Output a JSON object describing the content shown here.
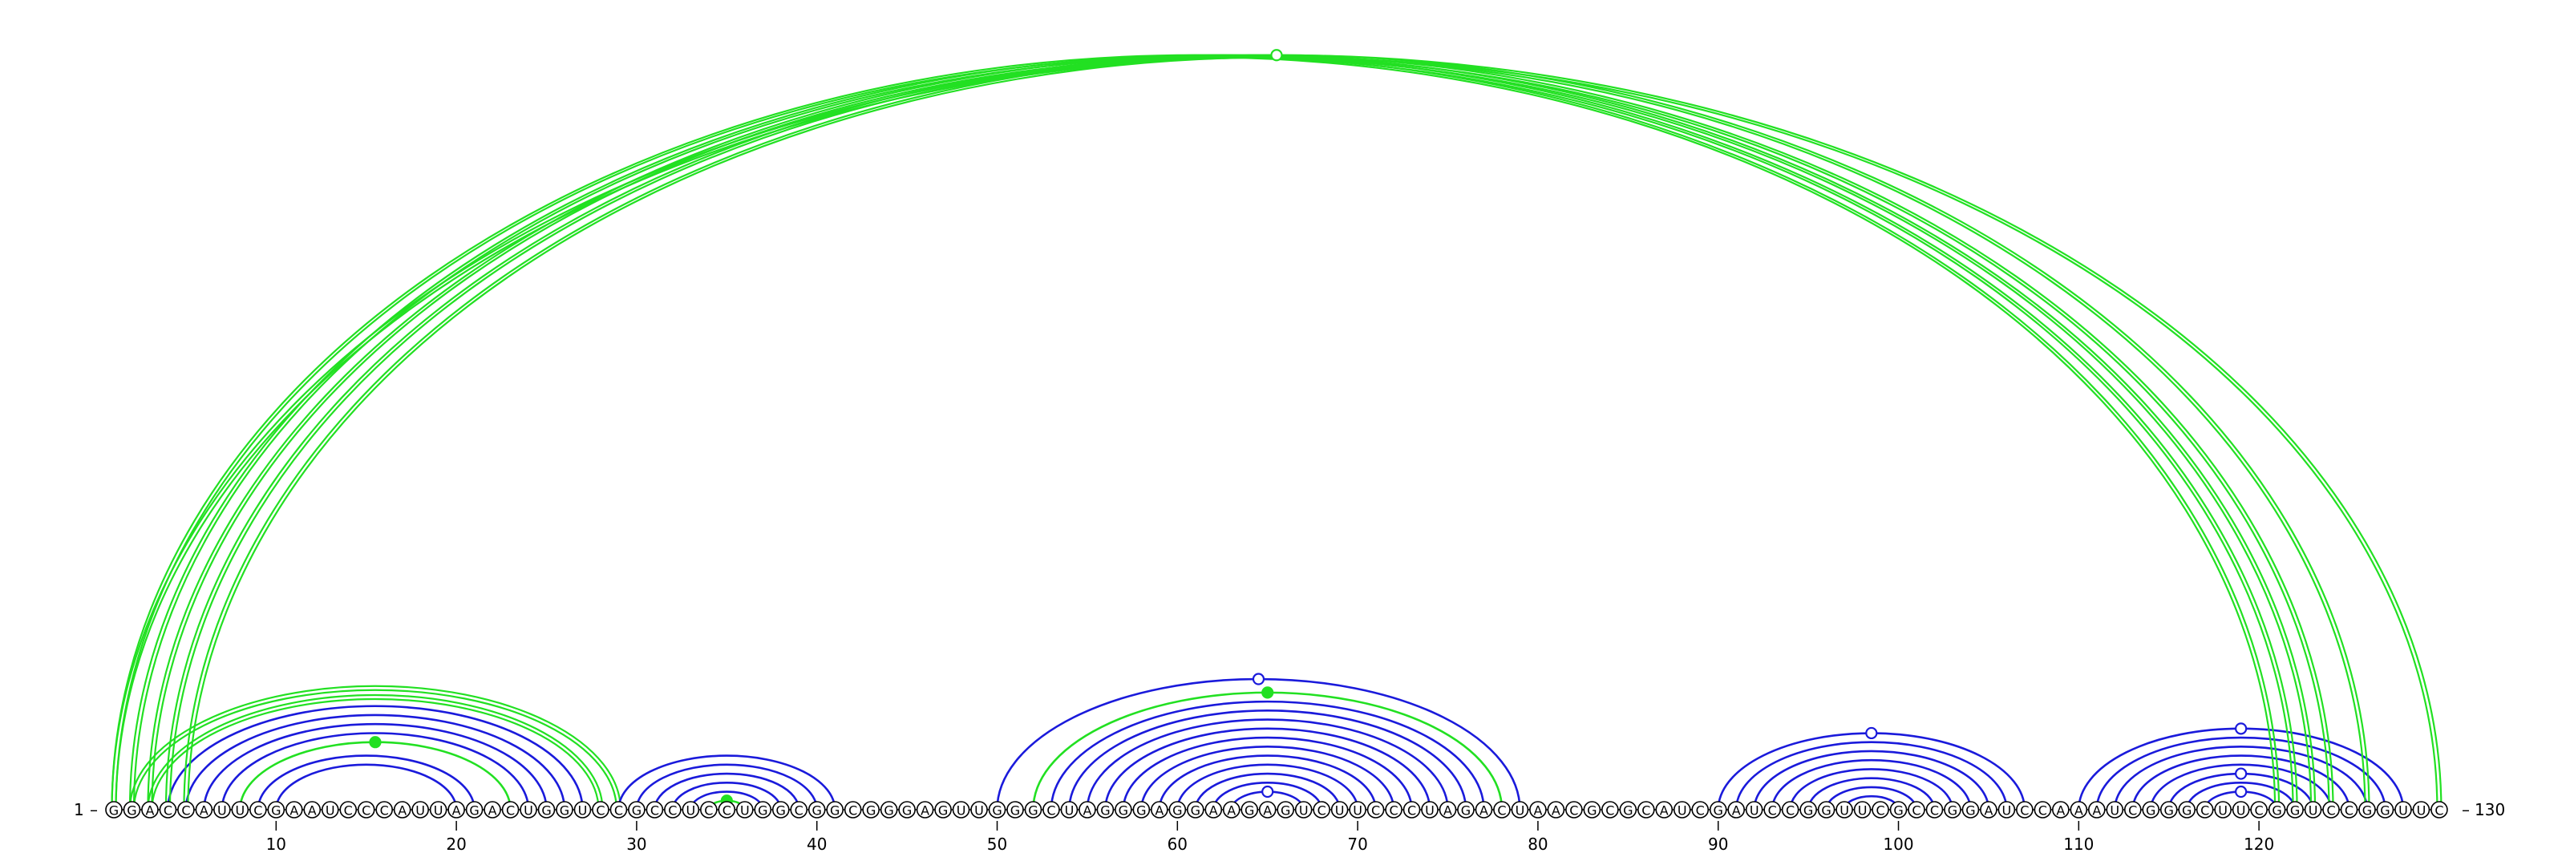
{
  "sequence": "GGACCAUUCGAAUCCCAUUAGACUGGUCCGCCUCCUGGCGGCGGGAGUUGGGCUAGGGAGGAAGAGUCUUCCCUAGACUAACGCGCAUCGAUCCGGUUCGCCGGAUCCAAAUCGGGCUUCGGUCCGGUUC",
  "start_label": "1",
  "end_label": "130",
  "tick_values": [
    "10",
    "20",
    "30",
    "40",
    "50",
    "60",
    "70",
    "80",
    "90",
    "100",
    "110",
    "120"
  ],
  "colors": {
    "blue": "#1a1adb",
    "green": "#22e022",
    "backbone": "#000000"
  },
  "helices": [
    {
      "color": "blue",
      "pairs": [
        [
          4,
          27
        ],
        [
          5,
          26
        ],
        [
          6,
          25
        ],
        [
          7,
          24
        ],
        [
          9,
          21
        ],
        [
          10,
          20
        ]
      ]
    },
    {
      "color": "green",
      "pairs": [
        [
          8,
          23
        ]
      ],
      "marker": "filled"
    },
    {
      "color": "green",
      "pairs": [
        [
          3,
          28
        ],
        [
          2,
          29
        ]
      ],
      "double": true
    },
    {
      "color": "blue",
      "pairs": [
        [
          29,
          41
        ],
        [
          30,
          40
        ],
        [
          31,
          39
        ],
        [
          32,
          38
        ],
        [
          33,
          37
        ]
      ]
    },
    {
      "color": "green",
      "pairs": [
        [
          34,
          36
        ]
      ],
      "marker": "filled"
    },
    {
      "color": "blue",
      "pairs": [
        [
          50,
          79
        ],
        [
          53,
          77
        ],
        [
          54,
          76
        ],
        [
          55,
          75
        ],
        [
          56,
          74
        ],
        [
          57,
          73
        ],
        [
          58,
          72
        ],
        [
          59,
          71
        ],
        [
          60,
          70
        ],
        [
          61,
          69
        ],
        [
          62,
          68
        ]
      ],
      "marker": "open"
    },
    {
      "color": "green",
      "pairs": [
        [
          52,
          78
        ]
      ],
      "marker": "filled"
    },
    {
      "color": "blue",
      "pairs": [
        [
          63,
          67
        ]
      ],
      "marker": "open"
    },
    {
      "color": "blue",
      "pairs": [
        [
          90,
          107
        ],
        [
          91,
          106
        ],
        [
          92,
          105
        ],
        [
          93,
          104
        ],
        [
          94,
          103
        ],
        [
          95,
          102
        ],
        [
          96,
          101
        ],
        [
          97,
          100
        ]
      ],
      "marker": "open"
    },
    {
      "color": "blue",
      "pairs": [
        [
          110,
          128
        ],
        [
          111,
          127
        ],
        [
          112,
          126
        ],
        [
          113,
          125
        ],
        [
          114,
          124
        ]
      ],
      "marker": "open"
    },
    {
      "color": "blue",
      "pairs": [
        [
          115,
          123
        ],
        [
          116,
          122
        ]
      ],
      "marker": "open"
    },
    {
      "color": "blue",
      "pairs": [
        [
          117,
          121
        ]
      ],
      "marker": "open"
    },
    {
      "color": "green",
      "pairs": [
        [
          1,
          121
        ],
        [
          2,
          122
        ],
        [
          3,
          123
        ],
        [
          4,
          124
        ],
        [
          5,
          126
        ]
      ],
      "double": true
    },
    {
      "color": "green",
      "pairs": [
        [
          1,
          130
        ]
      ],
      "double": true,
      "marker": "open"
    }
  ]
}
